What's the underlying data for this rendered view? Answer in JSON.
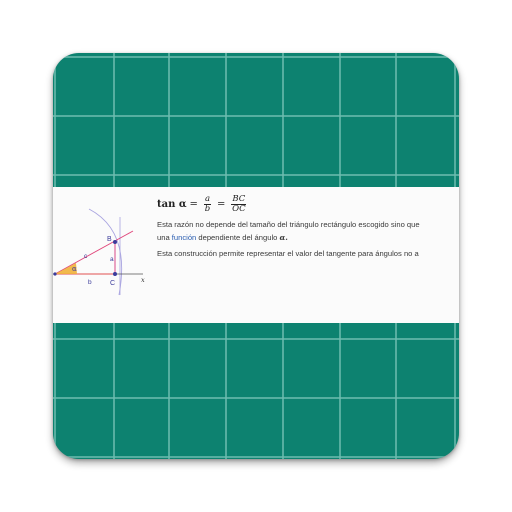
{
  "app_icon": {
    "tile_color": "#0d8270",
    "grid_line_color": "#6fbcb0",
    "formula": {
      "lhs": "tan α",
      "eq": "=",
      "frac1_num": "a",
      "frac1_den": "b",
      "frac2_num": "BC",
      "frac2_den": "OC"
    },
    "paragraph1_line1": "Esta razón no depende del tamaño del triángulo rectángulo escogido sino que",
    "paragraph1_line2_prefix": "una ",
    "paragraph1_link": "función",
    "paragraph1_line2_suffix": " dependiente del ángulo ",
    "paragraph1_symbol": "α.",
    "paragraph2": "Esta construcción permite representar el valor del tangente para ángulos no a",
    "diagram_labels": {
      "B": "B",
      "C": "C",
      "a": "a",
      "b": "b",
      "c": "c",
      "alpha": "α",
      "x": "x"
    }
  }
}
